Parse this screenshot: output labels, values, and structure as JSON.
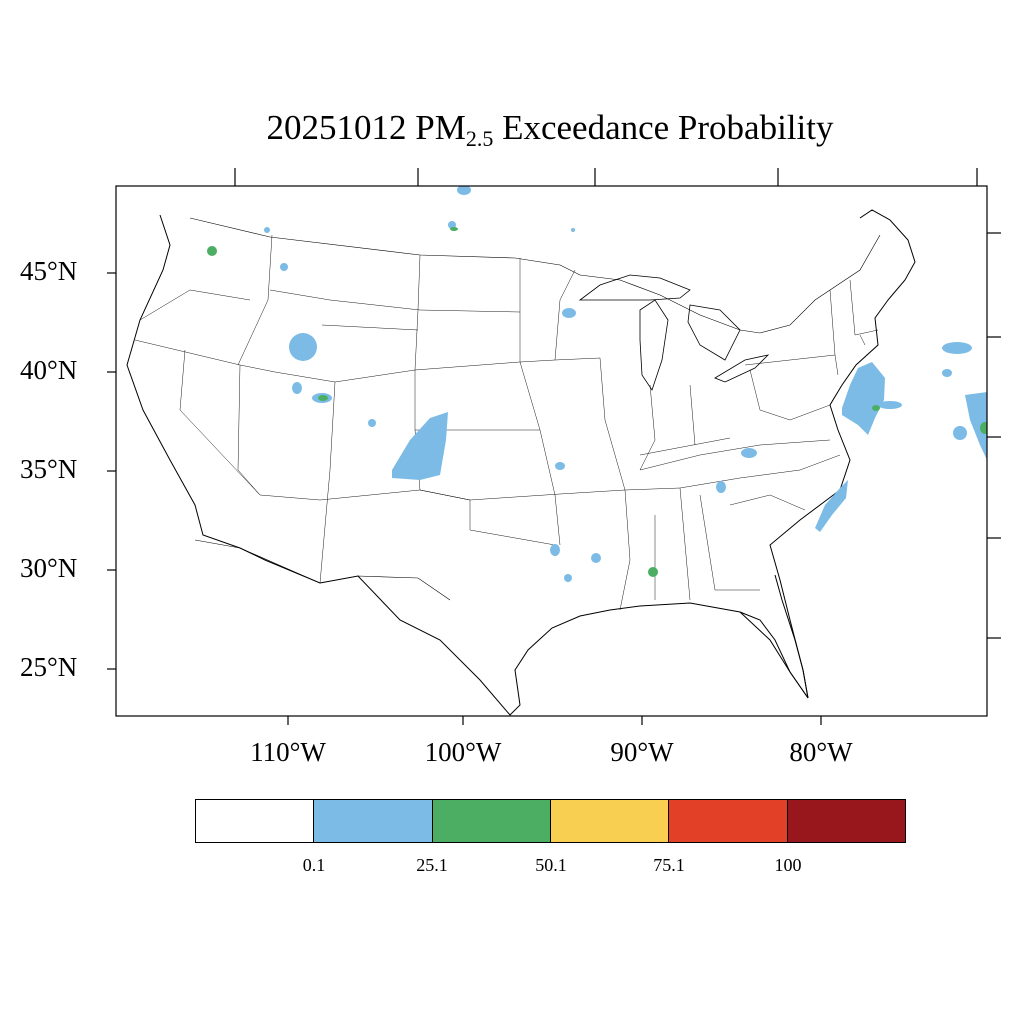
{
  "title": {
    "prefix": "20251012 PM",
    "subscript": "2.5",
    "suffix": " Exceedance Probability"
  },
  "lat_labels": [
    "45°N",
    "40°N",
    "35°N",
    "30°N",
    "25°N"
  ],
  "lon_labels": [
    "110°W",
    "100°W",
    "90°W",
    "80°W"
  ],
  "colorbar": {
    "colors": [
      "#ffffff",
      "#7cbbe6",
      "#4bae63",
      "#f9cf52",
      "#e24128",
      "#97171d"
    ],
    "labels": [
      "0.1",
      "25.1",
      "50.1",
      "75.1",
      "100"
    ]
  }
}
